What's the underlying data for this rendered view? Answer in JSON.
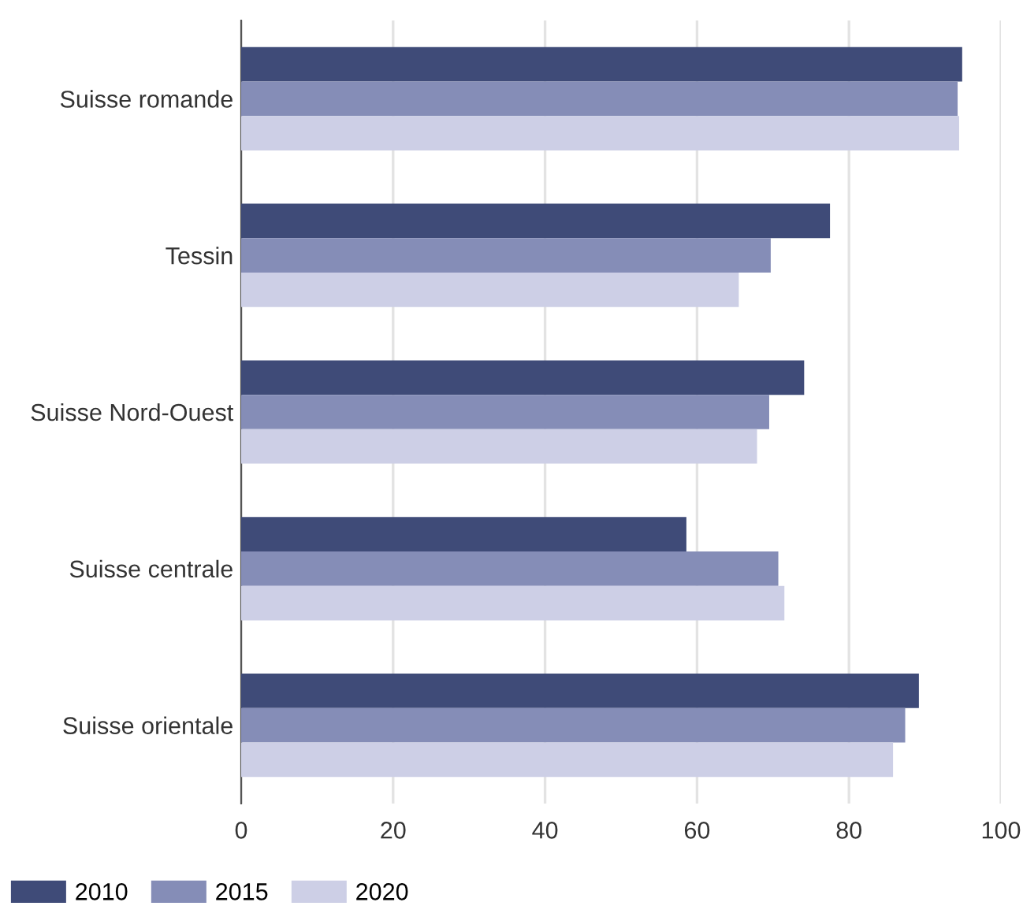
{
  "chart_data": {
    "type": "bar",
    "orientation": "horizontal",
    "categories": [
      "Suisse romande",
      "Tessin",
      "Suisse Nord-Ouest",
      "Suisse centrale",
      "Suisse orientale"
    ],
    "series": [
      {
        "name": "2010",
        "color": "#3f4b78",
        "values": [
          94.9,
          77.5,
          74.1,
          58.6,
          89.2
        ]
      },
      {
        "name": "2015",
        "color": "#858db7",
        "values": [
          94.3,
          69.7,
          69.5,
          70.7,
          87.4
        ]
      },
      {
        "name": "2020",
        "color": "#cdcfe6",
        "values": [
          94.5,
          65.5,
          67.9,
          71.5,
          85.8
        ]
      }
    ],
    "xlim": [
      0,
      100
    ],
    "xticks": [
      0,
      20,
      40,
      60,
      80,
      100
    ],
    "grid": "x",
    "legend": "bottom left"
  }
}
